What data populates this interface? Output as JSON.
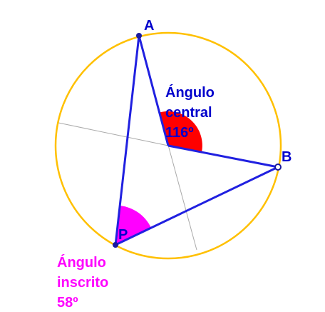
{
  "points": {
    "a": "A",
    "b": "B",
    "p": "P"
  },
  "central_angle": {
    "lines": [
      "Ángulo",
      "central",
      "116º"
    ]
  },
  "inscribed_angle": {
    "lines": [
      "Ángulo",
      "inscrito",
      "58º"
    ]
  }
}
